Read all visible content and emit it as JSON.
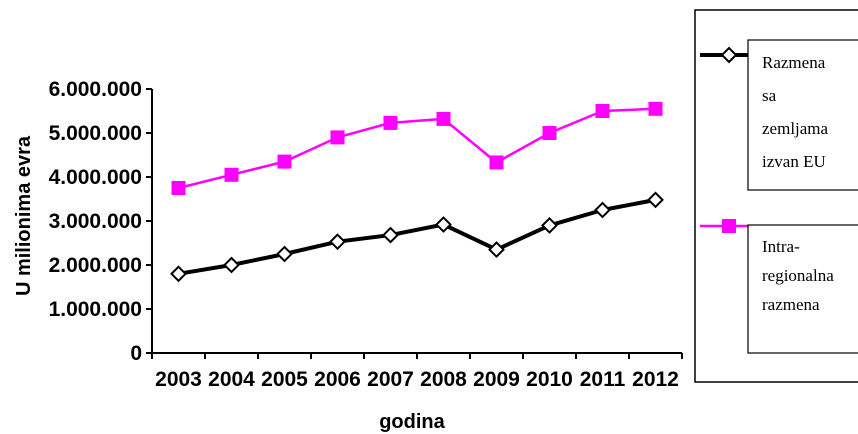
{
  "chart_data": {
    "type": "line",
    "categories": [
      "2003",
      "2004",
      "2005",
      "2006",
      "2007",
      "2008",
      "2009",
      "2010",
      "2011",
      "2012"
    ],
    "xlabel": "godina",
    "ylabel": "U milionima evra",
    "ylim": [
      0,
      6000000
    ],
    "yticks": [
      0,
      1000000,
      2000000,
      3000000,
      4000000,
      5000000,
      6000000
    ],
    "ytick_labels": [
      "0",
      "1.000.000",
      "2.000.000",
      "3.000.000",
      "4.000.000",
      "5.000.000",
      "6.000.000"
    ],
    "grid": false,
    "legend_position": "right",
    "series": [
      {
        "name_lines": [
          "Razmena",
          "sa",
          "zemljama",
          "izvan EU"
        ],
        "color": "#000000",
        "marker": "diamond",
        "values": [
          1800000,
          2000000,
          2250000,
          2530000,
          2680000,
          2920000,
          2350000,
          2900000,
          3250000,
          3480000
        ]
      },
      {
        "name_lines": [
          "Intra-",
          "regionalna",
          "razmena"
        ],
        "color": "#ff00ff",
        "marker": "square",
        "values": [
          3750000,
          4050000,
          4350000,
          4900000,
          5230000,
          5320000,
          4330000,
          5000000,
          5500000,
          5550000
        ]
      }
    ]
  }
}
